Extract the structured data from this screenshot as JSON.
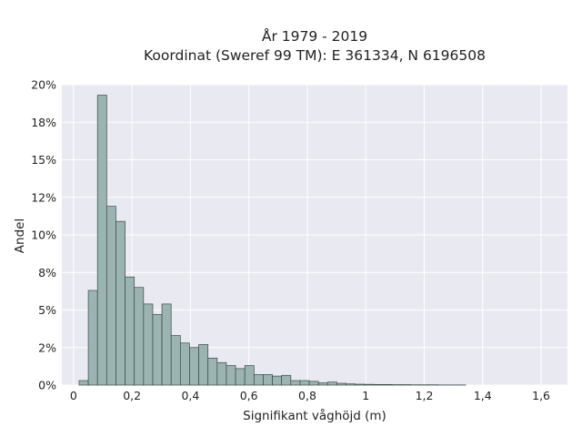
{
  "chart_data": {
    "type": "bar",
    "title_line1": "År 1979 - 2019",
    "title_line2": "Koordinat (Sweref 99 TM): E 361334, N 6196508",
    "xlabel": "Signifikant våghöjd (m)",
    "ylabel": "Andel",
    "xlim": [
      -0.04,
      1.69
    ],
    "ylim": [
      0,
      0.2
    ],
    "grid": true,
    "x_ticks": [
      0,
      0.2,
      0.4,
      0.6,
      0.8,
      1.0,
      1.2,
      1.4,
      1.6
    ],
    "x_tick_labels": [
      "0",
      "0,2",
      "0,4",
      "0,6",
      "0,8",
      "1",
      "1,2",
      "1,4",
      "1,6"
    ],
    "y_ticks": [
      0,
      0.025,
      0.05,
      0.075,
      0.1,
      0.125,
      0.15,
      0.175,
      0.2
    ],
    "y_tick_labels": [
      "0%",
      "2%",
      "5%",
      "8%",
      "10%",
      "12%",
      "15%",
      "18%",
      "20%"
    ],
    "bin_width": 0.0315,
    "bin_starts": [
      0.019,
      0.0505,
      0.082,
      0.1135,
      0.145,
      0.1765,
      0.208,
      0.2395,
      0.271,
      0.3025,
      0.334,
      0.3655,
      0.397,
      0.4285,
      0.46,
      0.4915,
      0.523,
      0.5545,
      0.586,
      0.6175,
      0.649,
      0.6805,
      0.712,
      0.7435,
      0.775,
      0.8065,
      0.838,
      0.8695,
      0.901,
      0.9325,
      0.964,
      0.9955,
      1.027,
      1.0585,
      1.09,
      1.1215,
      1.153,
      1.1845,
      1.216,
      1.2475,
      1.279,
      1.3105
    ],
    "values": [
      0.003,
      0.063,
      0.193,
      0.119,
      0.109,
      0.072,
      0.065,
      0.054,
      0.047,
      0.054,
      0.033,
      0.028,
      0.025,
      0.027,
      0.018,
      0.015,
      0.013,
      0.011,
      0.013,
      0.007,
      0.007,
      0.006,
      0.0065,
      0.003,
      0.003,
      0.0025,
      0.0015,
      0.002,
      0.0012,
      0.0008,
      0.0006,
      0.0005,
      0.0004,
      0.0004,
      0.0003,
      0.0003,
      0.0002,
      0.0002,
      0.0002,
      0.0001,
      0.0001,
      0.0001
    ],
    "bar_color": "#9bb3b1",
    "bar_edge_color": "#3a4a48",
    "plot_bg": "#e9e9f1",
    "grid_color": "#ffffff"
  }
}
